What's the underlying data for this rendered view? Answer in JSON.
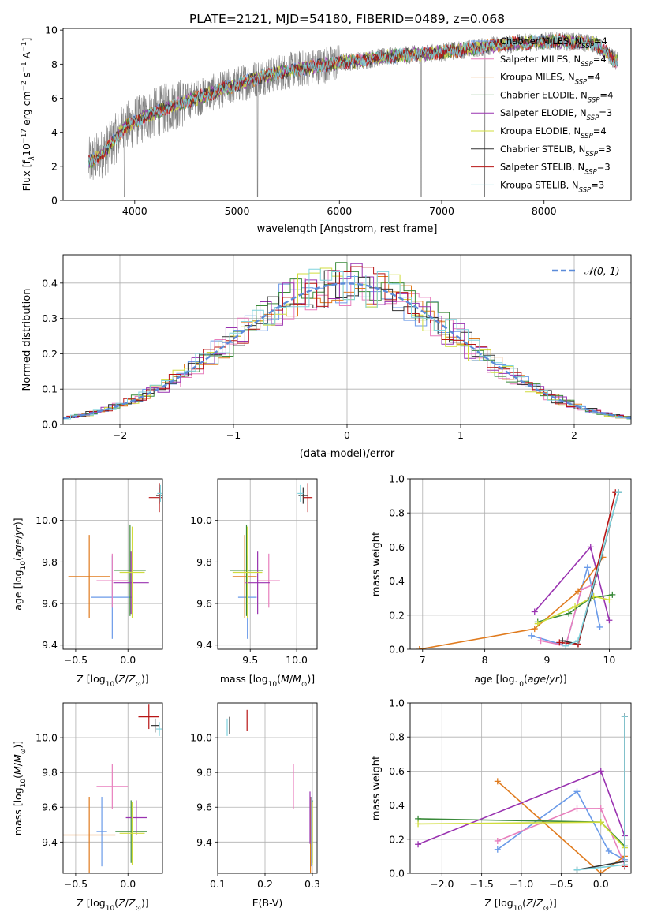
{
  "figure_title": "PLATE=2121, MJD=54180, FIBERID=0489, z=0.068",
  "models": [
    {
      "name": "Chabrier MILES",
      "nssp": "4",
      "color": "#6a9ae8"
    },
    {
      "name": "Salpeter MILES",
      "nssp": "4",
      "color": "#e87fbd"
    },
    {
      "name": "Kroupa MILES",
      "nssp": "4",
      "color": "#e07b1e"
    },
    {
      "name": "Chabrier ELODIE",
      "nssp": "4",
      "color": "#3a8a3a"
    },
    {
      "name": "Salpeter ELODIE",
      "nssp": "3",
      "color": "#9932b0"
    },
    {
      "name": "Kroupa ELODIE",
      "nssp": "4",
      "color": "#d0dc3c"
    },
    {
      "name": "Chabrier STELIB",
      "nssp": "3",
      "color": "#333333"
    },
    {
      "name": "Salpeter STELIB",
      "nssp": "3",
      "color": "#b81414"
    },
    {
      "name": "Kroupa STELIB",
      "nssp": "3",
      "color": "#7fd3de"
    }
  ],
  "chart_data": [
    {
      "type": "line",
      "id": "spectrum",
      "title": "PLATE=2121, MJD=54180, FIBERID=0489, z=0.068",
      "xlabel": "wavelength [Angstrom, rest frame]",
      "ylabel": "Flux [f_λ 10^-17 erg cm^-2 s^-1 A^-1]",
      "xlim": [
        3300,
        8850
      ],
      "ylim": [
        0,
        10.1
      ],
      "xticks": [
        4000,
        5000,
        6000,
        7000,
        8000
      ],
      "yticks": [
        0,
        2,
        4,
        6,
        8,
        10
      ],
      "data_color": "#808080",
      "series_points": {
        "x": [
          3550,
          3700,
          3900,
          4100,
          4300,
          4500,
          4800,
          5000,
          5200,
          5400,
          5600,
          5800,
          6000,
          6200,
          6400,
          6600,
          6800,
          7000,
          7200,
          7400,
          7500,
          7700,
          7900,
          8100,
          8300,
          8500,
          8700
        ],
        "y": [
          2.2,
          2.8,
          4.3,
          4.9,
          5.4,
          5.8,
          6.4,
          6.8,
          7.2,
          7.5,
          7.7,
          7.9,
          8.1,
          8.2,
          8.4,
          8.5,
          8.6,
          8.7,
          8.85,
          9.0,
          9.1,
          9.2,
          9.3,
          9.35,
          9.3,
          9.2,
          8.2
        ]
      },
      "legend": "upper-right"
    },
    {
      "type": "bar",
      "id": "residuals",
      "xlabel": "(data-model)/error",
      "ylabel": "Normed distribution",
      "xlim": [
        -2.5,
        2.5
      ],
      "ylim": [
        0,
        0.48
      ],
      "xticks": [
        -2,
        -1,
        0,
        1,
        2
      ],
      "yticks": [
        0.0,
        0.1,
        0.2,
        0.3,
        0.4
      ],
      "bin_width": 0.1,
      "reference": "N(0,1)",
      "legend_label": "𝒩(0, 1)",
      "legend": "upper-right",
      "grid": true
    },
    {
      "type": "scatter",
      "id": "age-vs-z",
      "xlabel": "Z [log10(Z/Z⊙)]",
      "ylabel": "age [log10(age/yr)]",
      "xlim": [
        -0.62,
        0.33
      ],
      "ylim": [
        9.38,
        10.2
      ],
      "xticks": [
        -0.5,
        0.0
      ],
      "yticks": [
        9.4,
        9.6,
        9.8,
        10.0
      ],
      "points": [
        {
          "model": 0,
          "x": -0.15,
          "y": 9.63,
          "xerr": 0.2,
          "yerr": 0.2
        },
        {
          "model": 1,
          "x": -0.15,
          "y": 9.71,
          "xerr": 0.15,
          "yerr": 0.13
        },
        {
          "model": 2,
          "x": -0.37,
          "y": 9.73,
          "xerr": 0.2,
          "yerr": 0.2
        },
        {
          "model": 3,
          "x": 0.02,
          "y": 9.76,
          "xerr": 0.15,
          "yerr": 0.22
        },
        {
          "model": 4,
          "x": 0.03,
          "y": 9.7,
          "xerr": 0.17,
          "yerr": 0.15
        },
        {
          "model": 5,
          "x": 0.04,
          "y": 9.75,
          "xerr": 0.12,
          "yerr": 0.22
        },
        {
          "model": 6,
          "x": 0.3,
          "y": 10.12,
          "xerr": 0.03,
          "yerr": 0.04
        },
        {
          "model": 7,
          "x": 0.3,
          "y": 10.11,
          "xerr": 0.1,
          "yerr": 0.07
        },
        {
          "model": 8,
          "x": 0.31,
          "y": 10.13,
          "xerr": 0.03,
          "yerr": 0.04
        }
      ]
    },
    {
      "type": "scatter",
      "id": "age-vs-mass",
      "xlabel": "mass [log10(M/M⊙)]",
      "ylabel": "",
      "xlim": [
        9.15,
        10.22
      ],
      "ylim": [
        9.38,
        10.2
      ],
      "xticks": [
        9.5,
        10.0
      ],
      "yticks": [
        9.4,
        9.6,
        9.8,
        10.0
      ],
      "points": [
        {
          "model": 0,
          "x": 9.47,
          "y": 9.63,
          "xerr": 0.1,
          "yerr": 0.2
        },
        {
          "model": 1,
          "x": 9.7,
          "y": 9.71,
          "xerr": 0.12,
          "yerr": 0.13
        },
        {
          "model": 2,
          "x": 9.44,
          "y": 9.73,
          "xerr": 0.13,
          "yerr": 0.2
        },
        {
          "model": 3,
          "x": 9.46,
          "y": 9.76,
          "xerr": 0.18,
          "yerr": 0.22
        },
        {
          "model": 4,
          "x": 9.58,
          "y": 9.7,
          "xerr": 0.13,
          "yerr": 0.15
        },
        {
          "model": 5,
          "x": 9.47,
          "y": 9.75,
          "xerr": 0.16,
          "yerr": 0.22
        },
        {
          "model": 6,
          "x": 10.07,
          "y": 10.12,
          "xerr": 0.05,
          "yerr": 0.04
        },
        {
          "model": 7,
          "x": 10.12,
          "y": 10.11,
          "xerr": 0.05,
          "yerr": 0.07
        },
        {
          "model": 8,
          "x": 10.04,
          "y": 10.13,
          "xerr": 0.03,
          "yerr": 0.04
        }
      ]
    },
    {
      "type": "line",
      "id": "weight-vs-age",
      "xlabel": "age [log10(age/yr)]",
      "ylabel": "mass weight",
      "xlim": [
        6.8,
        10.35
      ],
      "ylim": [
        0,
        1.0
      ],
      "xticks": [
        7,
        8,
        9,
        10
      ],
      "yticks": [
        0.0,
        0.2,
        0.4,
        0.6,
        0.8,
        1.0
      ],
      "series": [
        {
          "model": 0,
          "x": [
            8.75,
            9.3,
            9.65,
            9.85
          ],
          "y": [
            0.08,
            0.02,
            0.48,
            0.13
          ]
        },
        {
          "model": 1,
          "x": [
            8.9,
            9.3,
            9.55,
            9.75
          ],
          "y": [
            0.05,
            0.02,
            0.35,
            0.38
          ]
        },
        {
          "model": 2,
          "x": [
            6.95,
            8.8,
            9.5,
            9.9
          ],
          "y": [
            0.0,
            0.12,
            0.34,
            0.54
          ]
        },
        {
          "model": 3,
          "x": [
            8.85,
            9.35,
            9.7,
            10.05
          ],
          "y": [
            0.16,
            0.21,
            0.3,
            0.32
          ]
        },
        {
          "model": 4,
          "x": [
            8.8,
            9.7,
            10.0
          ],
          "y": [
            0.22,
            0.6,
            0.17
          ]
        },
        {
          "model": 5,
          "x": [
            8.85,
            9.45,
            9.75,
            10.0
          ],
          "y": [
            0.15,
            0.25,
            0.31,
            0.29
          ]
        },
        {
          "model": 6,
          "x": [
            9.25,
            9.5,
            10.15
          ],
          "y": [
            0.05,
            0.03,
            0.92
          ]
        },
        {
          "model": 7,
          "x": [
            9.2,
            9.5,
            10.1
          ],
          "y": [
            0.04,
            0.03,
            0.92
          ]
        },
        {
          "model": 8,
          "x": [
            9.3,
            9.5,
            10.15
          ],
          "y": [
            0.02,
            0.05,
            0.92
          ]
        }
      ]
    },
    {
      "type": "scatter",
      "id": "mass-vs-z",
      "xlabel": "Z [log10(Z/Z⊙)]",
      "ylabel": "mass [log10(M/M⊙)]",
      "xlim": [
        -0.62,
        0.33
      ],
      "ylim": [
        9.22,
        10.2
      ],
      "xticks": [
        -0.5,
        0.0
      ],
      "yticks": [
        9.4,
        9.6,
        9.8,
        10.0
      ],
      "points": [
        {
          "model": 0,
          "x": -0.25,
          "y": 9.46,
          "xerr": 0.05,
          "yerr": 0.2
        },
        {
          "model": 1,
          "x": -0.15,
          "y": 9.72,
          "xerr": 0.15,
          "yerr": 0.13
        },
        {
          "model": 2,
          "x": -0.37,
          "y": 9.44,
          "xerr": 0.25,
          "yerr": 0.22
        },
        {
          "model": 3,
          "x": 0.03,
          "y": 9.46,
          "xerr": 0.15,
          "yerr": 0.18
        },
        {
          "model": 4,
          "x": 0.08,
          "y": 9.54,
          "xerr": 0.1,
          "yerr": 0.1
        },
        {
          "model": 5,
          "x": 0.04,
          "y": 9.45,
          "xerr": 0.12,
          "yerr": 0.18
        },
        {
          "model": 6,
          "x": 0.26,
          "y": 10.07,
          "xerr": 0.04,
          "yerr": 0.04
        },
        {
          "model": 7,
          "x": 0.2,
          "y": 10.12,
          "xerr": 0.1,
          "yerr": 0.07
        },
        {
          "model": 8,
          "x": 0.3,
          "y": 10.05,
          "xerr": 0.03,
          "yerr": 0.04
        }
      ]
    },
    {
      "type": "scatter",
      "id": "mass-vs-ebv",
      "xlabel": "E(B-V)",
      "ylabel": "",
      "xlim": [
        0.1,
        0.31
      ],
      "ylim": [
        9.22,
        10.2
      ],
      "xticks": [
        0.1,
        0.2,
        0.3
      ],
      "yticks": [
        9.4,
        9.6,
        9.8,
        10.0
      ],
      "points": [
        {
          "model": 0,
          "x": 0.298,
          "y": 9.46,
          "yerr": 0.2
        },
        {
          "model": 1,
          "x": 0.26,
          "y": 9.72,
          "yerr": 0.13
        },
        {
          "model": 2,
          "x": 0.296,
          "y": 9.44,
          "yerr": 0.22
        },
        {
          "model": 3,
          "x": 0.3,
          "y": 9.46,
          "yerr": 0.18
        },
        {
          "model": 4,
          "x": 0.295,
          "y": 9.54,
          "yerr": 0.15
        },
        {
          "model": 5,
          "x": 0.3,
          "y": 9.45,
          "yerr": 0.18
        },
        {
          "model": 6,
          "x": 0.125,
          "y": 10.07,
          "yerr": 0.05
        },
        {
          "model": 7,
          "x": 0.162,
          "y": 10.1,
          "yerr": 0.06
        },
        {
          "model": 8,
          "x": 0.12,
          "y": 10.06,
          "yerr": 0.05
        }
      ]
    },
    {
      "type": "line",
      "id": "weight-vs-z",
      "xlabel": "Z [log10(Z/Z⊙)]",
      "ylabel": "mass weight",
      "xlim": [
        -2.4,
        0.38
      ],
      "ylim": [
        0,
        1.0
      ],
      "xticks": [
        -2.0,
        -1.5,
        -1.0,
        -0.5,
        0.0
      ],
      "yticks": [
        0.0,
        0.2,
        0.4,
        0.6,
        0.8,
        1.0
      ],
      "series": [
        {
          "model": 0,
          "x": [
            -1.3,
            -0.3,
            0.1,
            0.3
          ],
          "y": [
            0.14,
            0.48,
            0.13,
            0.08
          ]
        },
        {
          "model": 1,
          "x": [
            -1.3,
            -0.3,
            0.0,
            0.3
          ],
          "y": [
            0.19,
            0.38,
            0.38,
            0.05
          ]
        },
        {
          "model": 2,
          "x": [
            -1.3,
            0.0,
            0.3
          ],
          "y": [
            0.54,
            0.0,
            0.1
          ]
        },
        {
          "model": 3,
          "x": [
            -2.3,
            0.0,
            0.3
          ],
          "y": [
            0.32,
            0.3,
            0.16
          ]
        },
        {
          "model": 4,
          "x": [
            -2.3,
            0.0,
            0.3
          ],
          "y": [
            0.17,
            0.6,
            0.22
          ]
        },
        {
          "model": 5,
          "x": [
            -2.3,
            0.0,
            0.3
          ],
          "y": [
            0.29,
            0.3,
            0.15
          ]
        },
        {
          "model": 6,
          "x": [
            -0.3,
            0.3,
            0.3
          ],
          "y": [
            0.02,
            0.07,
            0.92
          ]
        },
        {
          "model": 7,
          "x": [
            0.3,
            0.3
          ],
          "y": [
            0.04,
            0.92
          ]
        },
        {
          "model": 8,
          "x": [
            -0.3,
            0.3,
            0.3
          ],
          "y": [
            0.02,
            0.05,
            0.92
          ]
        }
      ]
    }
  ]
}
